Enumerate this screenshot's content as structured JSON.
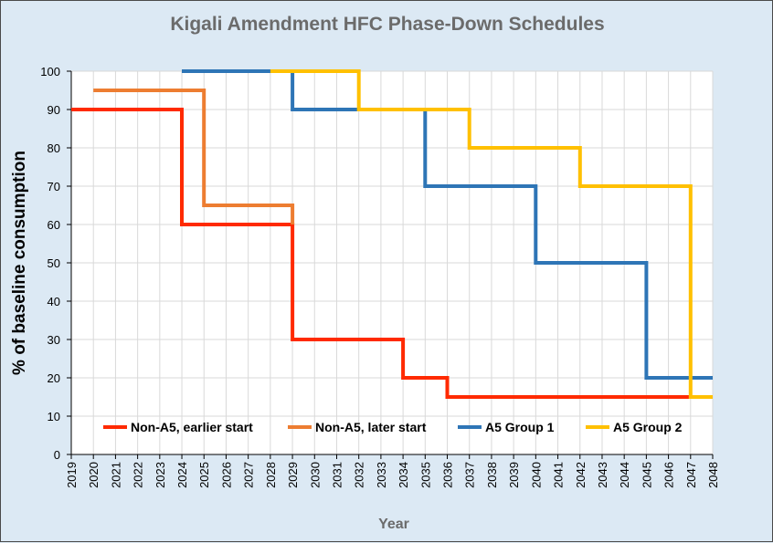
{
  "chart_data": {
    "type": "line",
    "step": true,
    "title": "Kigali Amendment HFC Phase-Down Schedules",
    "xlabel": "Year",
    "ylabel": "% of baseline consumption",
    "xlim": [
      2019,
      2048
    ],
    "ylim": [
      0,
      100
    ],
    "yticks": [
      0,
      10,
      20,
      30,
      40,
      50,
      60,
      70,
      80,
      90,
      100
    ],
    "xticks": [
      2019,
      2020,
      2021,
      2022,
      2023,
      2024,
      2025,
      2026,
      2027,
      2028,
      2029,
      2030,
      2031,
      2032,
      2033,
      2034,
      2035,
      2036,
      2037,
      2038,
      2039,
      2040,
      2041,
      2042,
      2043,
      2044,
      2045,
      2046,
      2047,
      2048
    ],
    "grid": true,
    "legend": "inside-bottom",
    "series": [
      {
        "name": "Non-A5, earlier start",
        "color": "#ff2a00",
        "points": [
          [
            2019,
            90
          ],
          [
            2024,
            90
          ],
          [
            2024,
            60
          ],
          [
            2029,
            60
          ],
          [
            2029,
            30
          ],
          [
            2034,
            30
          ],
          [
            2034,
            20
          ],
          [
            2036,
            20
          ],
          [
            2036,
            15
          ],
          [
            2047,
            15
          ]
        ]
      },
      {
        "name": "Non-A5, later start",
        "color": "#ed7d31",
        "points": [
          [
            2020,
            95
          ],
          [
            2025,
            95
          ],
          [
            2025,
            65
          ],
          [
            2029,
            65
          ],
          [
            2029,
            60
          ]
        ]
      },
      {
        "name": "A5 Group 1",
        "color": "#2e75b6",
        "points": [
          [
            2024,
            100
          ],
          [
            2029,
            100
          ],
          [
            2029,
            90
          ],
          [
            2035,
            90
          ],
          [
            2035,
            70
          ],
          [
            2040,
            70
          ],
          [
            2040,
            50
          ],
          [
            2045,
            50
          ],
          [
            2045,
            20
          ],
          [
            2048,
            20
          ]
        ]
      },
      {
        "name": "A5 Group 2",
        "color": "#ffc000",
        "points": [
          [
            2028,
            100
          ],
          [
            2032,
            100
          ],
          [
            2032,
            90
          ],
          [
            2037,
            90
          ],
          [
            2037,
            80
          ],
          [
            2042,
            80
          ],
          [
            2042,
            70
          ],
          [
            2047,
            70
          ],
          [
            2047,
            15
          ],
          [
            2048,
            15
          ]
        ]
      }
    ]
  }
}
